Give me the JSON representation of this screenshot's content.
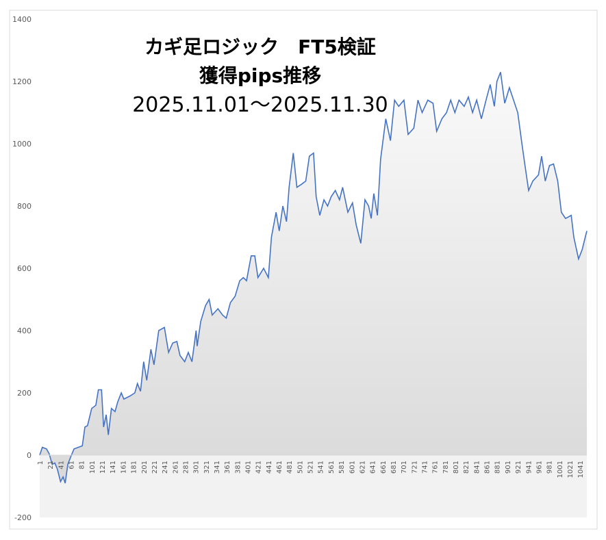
{
  "chart_data": {
    "type": "area",
    "title_lines": [
      "カギ足ロジック　FT5検証",
      "獲得pips推移",
      "2025.11.01～2025.11.30"
    ],
    "x": [
      1,
      6,
      14,
      19,
      25,
      30,
      35,
      41,
      46,
      50,
      55,
      62,
      67,
      75,
      83,
      88,
      93,
      101,
      109,
      114,
      120,
      124,
      129,
      133,
      139,
      146,
      151,
      158,
      163,
      175,
      184,
      189,
      195,
      201,
      207,
      215,
      221,
      230,
      241,
      249,
      257,
      265,
      271,
      280,
      287,
      294,
      302,
      304,
      311,
      320,
      327,
      333,
      344,
      353,
      360,
      368,
      377,
      386,
      393,
      399,
      408,
      415,
      421,
      432,
      441,
      447,
      456,
      462,
      469,
      476,
      481,
      489,
      496,
      505,
      513,
      520,
      528,
      533,
      540,
      548,
      555,
      562,
      570,
      578,
      584,
      594,
      603,
      610,
      619,
      627,
      634,
      639,
      644,
      651,
      657,
      667,
      676,
      684,
      692,
      702,
      710,
      721,
      729,
      737,
      748,
      758,
      765,
      775,
      784,
      792,
      800,
      808,
      818,
      826,
      834,
      842,
      851,
      860,
      868,
      876,
      881,
      888,
      896,
      905,
      913,
      921,
      929,
      935,
      942,
      950,
      961,
      967,
      974,
      982,
      990,
      998,
      1005,
      1013,
      1024,
      1029,
      1038,
      1045,
      1051,
      1054
    ],
    "values": [
      0,
      25,
      20,
      5,
      -30,
      -25,
      -45,
      -85,
      -70,
      -90,
      -30,
      0,
      20,
      25,
      30,
      90,
      95,
      150,
      160,
      210,
      210,
      90,
      130,
      65,
      150,
      140,
      170,
      200,
      180,
      190,
      200,
      230,
      205,
      300,
      240,
      340,
      290,
      400,
      410,
      330,
      360,
      365,
      320,
      300,
      330,
      300,
      400,
      350,
      430,
      480,
      500,
      450,
      470,
      450,
      440,
      490,
      510,
      560,
      570,
      560,
      640,
      640,
      570,
      600,
      570,
      700,
      780,
      720,
      800,
      750,
      860,
      970,
      860,
      870,
      880,
      960,
      970,
      830,
      770,
      820,
      800,
      830,
      850,
      820,
      860,
      780,
      810,
      740,
      680,
      820,
      800,
      760,
      840,
      770,
      950,
      1080,
      1010,
      1140,
      1120,
      1140,
      1030,
      1050,
      1140,
      1100,
      1140,
      1130,
      1040,
      1080,
      1100,
      1140,
      1100,
      1140,
      1120,
      1150,
      1100,
      1140,
      1080,
      1140,
      1190,
      1120,
      1200,
      1230,
      1130,
      1180,
      1140,
      1100,
      1000,
      930,
      850,
      880,
      900,
      960,
      880,
      930,
      935,
      880,
      780,
      760,
      770,
      700,
      630,
      660,
      700,
      720
    ],
    "color": "#4472c4",
    "xlim": [
      1,
      1054
    ],
    "xticks": [
      1,
      21,
      41,
      61,
      81,
      101,
      121,
      141,
      161,
      181,
      201,
      221,
      241,
      261,
      281,
      301,
      321,
      341,
      361,
      381,
      401,
      421,
      441,
      461,
      481,
      501,
      521,
      541,
      561,
      581,
      601,
      621,
      641,
      661,
      681,
      701,
      721,
      741,
      761,
      781,
      801,
      821,
      841,
      861,
      881,
      901,
      921,
      941,
      961,
      981,
      1001,
      1021,
      1041
    ],
    "ylim": [
      -200,
      1400
    ],
    "yticks": [
      -200,
      0,
      200,
      400,
      600,
      800,
      1000,
      1200,
      1400
    ]
  }
}
